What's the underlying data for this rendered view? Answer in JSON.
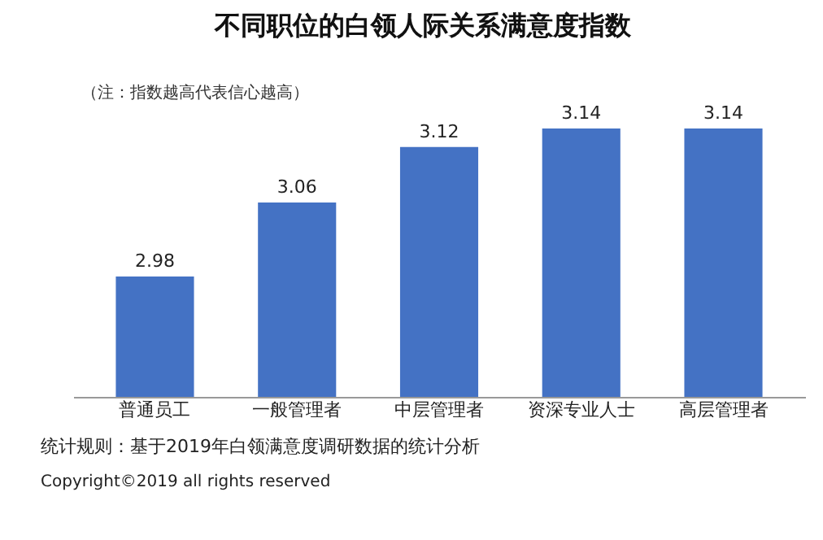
{
  "chart_data": {
    "type": "bar",
    "title": "不同职位的白领人际关系满意度指数",
    "categories": [
      "普通员工",
      "一般管理者",
      "中层管理者",
      "资深专业人士",
      "高层管理者"
    ],
    "values": [
      2.98,
      3.06,
      3.12,
      3.14,
      3.14
    ],
    "color": "#4472c4",
    "data_labels": true,
    "ylim": [
      2.85,
      3.14
    ],
    "tick_labels": "x",
    "annotations": [
      "（注：指数越高代表信心越高）",
      "统计规则：基于2019年白领满意度调研数据的统计分析",
      "Copyright©2019 all rights reserved"
    ]
  }
}
